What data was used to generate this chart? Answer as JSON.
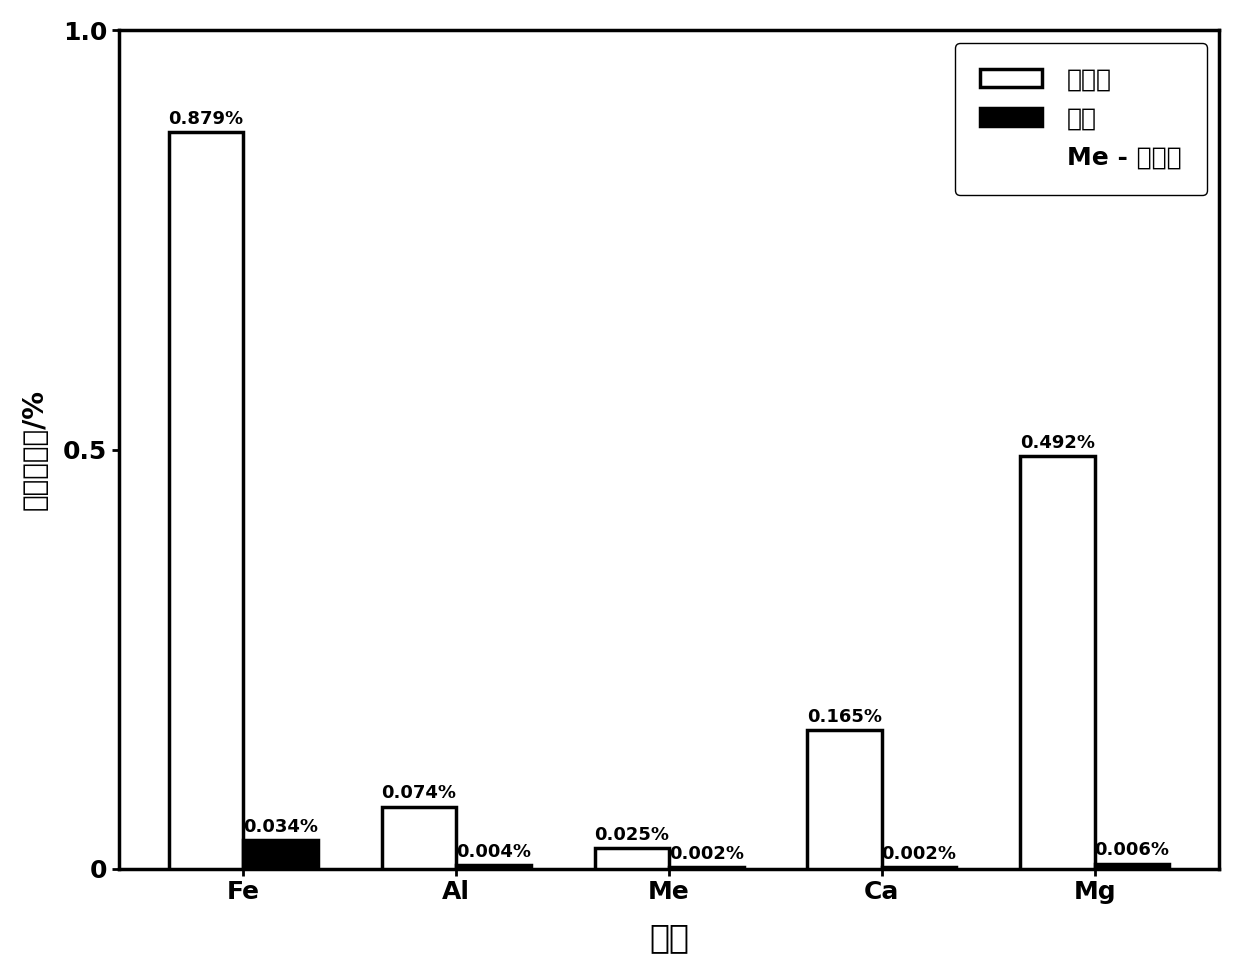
{
  "categories": [
    "Fe",
    "Al",
    "Me",
    "Ca",
    "Mg"
  ],
  "leach_values": [
    0.879,
    0.074,
    0.025,
    0.165,
    0.492
  ],
  "product_values": [
    0.034,
    0.004,
    0.002,
    0.002,
    0.006
  ],
  "leach_labels": [
    "0.879%",
    "0.074%",
    "0.025%",
    "0.165%",
    "0.492%"
  ],
  "product_labels": [
    "0.034%",
    "0.004%",
    "0.002%",
    "0.002%",
    "0.006%"
  ],
  "leach_color": "#ffffff",
  "leach_edge": "#000000",
  "product_color": "#000000",
  "product_edge": "#000000",
  "ylabel": "含量百分比/%",
  "xlabel": "杂质",
  "ylim": [
    0,
    1.0
  ],
  "yticks": [
    0,
    0.5,
    1.0
  ],
  "legend_label1": "浸出液",
  "legend_label2": "产物",
  "legend_note": "Me - 重金属",
  "bar_width": 0.35,
  "background_color": "#ffffff",
  "label_fontsize": 13,
  "tick_fontsize": 18,
  "ylabel_fontsize": 20,
  "xlabel_fontsize": 24,
  "legend_fontsize": 18
}
